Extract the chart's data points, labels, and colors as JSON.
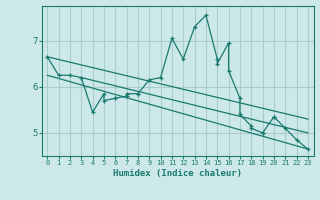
{
  "title": "",
  "xlabel": "Humidex (Indice chaleur)",
  "bg_color": "#cce8e8",
  "grid_color": "#aacccc",
  "line_color": "#1a7a6e",
  "xlim": [
    -0.5,
    23.5
  ],
  "ylim": [
    4.5,
    7.75
  ],
  "yticks": [
    5,
    6,
    7
  ],
  "xticks": [
    0,
    1,
    2,
    3,
    4,
    5,
    6,
    7,
    8,
    9,
    10,
    11,
    12,
    13,
    14,
    15,
    16,
    17,
    18,
    19,
    20,
    21,
    22,
    23
  ],
  "series": [
    [
      0,
      6.65
    ],
    [
      1,
      6.25
    ],
    [
      2,
      6.25
    ],
    [
      3,
      6.2
    ],
    [
      4,
      5.45
    ],
    [
      5,
      5.85
    ],
    [
      5,
      5.7
    ],
    [
      6,
      5.75
    ],
    [
      6,
      5.75
    ],
    [
      7,
      5.8
    ],
    [
      7,
      5.85
    ],
    [
      8,
      5.85
    ],
    [
      8,
      5.85
    ],
    [
      9,
      6.15
    ],
    [
      10,
      6.2
    ],
    [
      11,
      7.05
    ],
    [
      12,
      6.6
    ],
    [
      13,
      7.3
    ],
    [
      14,
      7.55
    ],
    [
      15,
      6.6
    ],
    [
      15,
      6.5
    ],
    [
      16,
      6.95
    ],
    [
      16,
      6.35
    ],
    [
      17,
      5.75
    ],
    [
      17,
      5.4
    ],
    [
      18,
      5.15
    ],
    [
      18,
      5.1
    ],
    [
      19,
      5.0
    ],
    [
      19,
      5.0
    ],
    [
      20,
      5.35
    ],
    [
      20,
      5.35
    ],
    [
      21,
      5.1
    ],
    [
      22,
      4.85
    ],
    [
      23,
      4.65
    ]
  ],
  "line1_x": [
    0,
    23
  ],
  "line1_y": [
    6.65,
    5.3
  ],
  "line2_x": [
    0,
    23
  ],
  "line2_y": [
    6.25,
    4.65
  ],
  "line3_x": [
    3,
    23
  ],
  "line3_y": [
    6.2,
    5.0
  ]
}
